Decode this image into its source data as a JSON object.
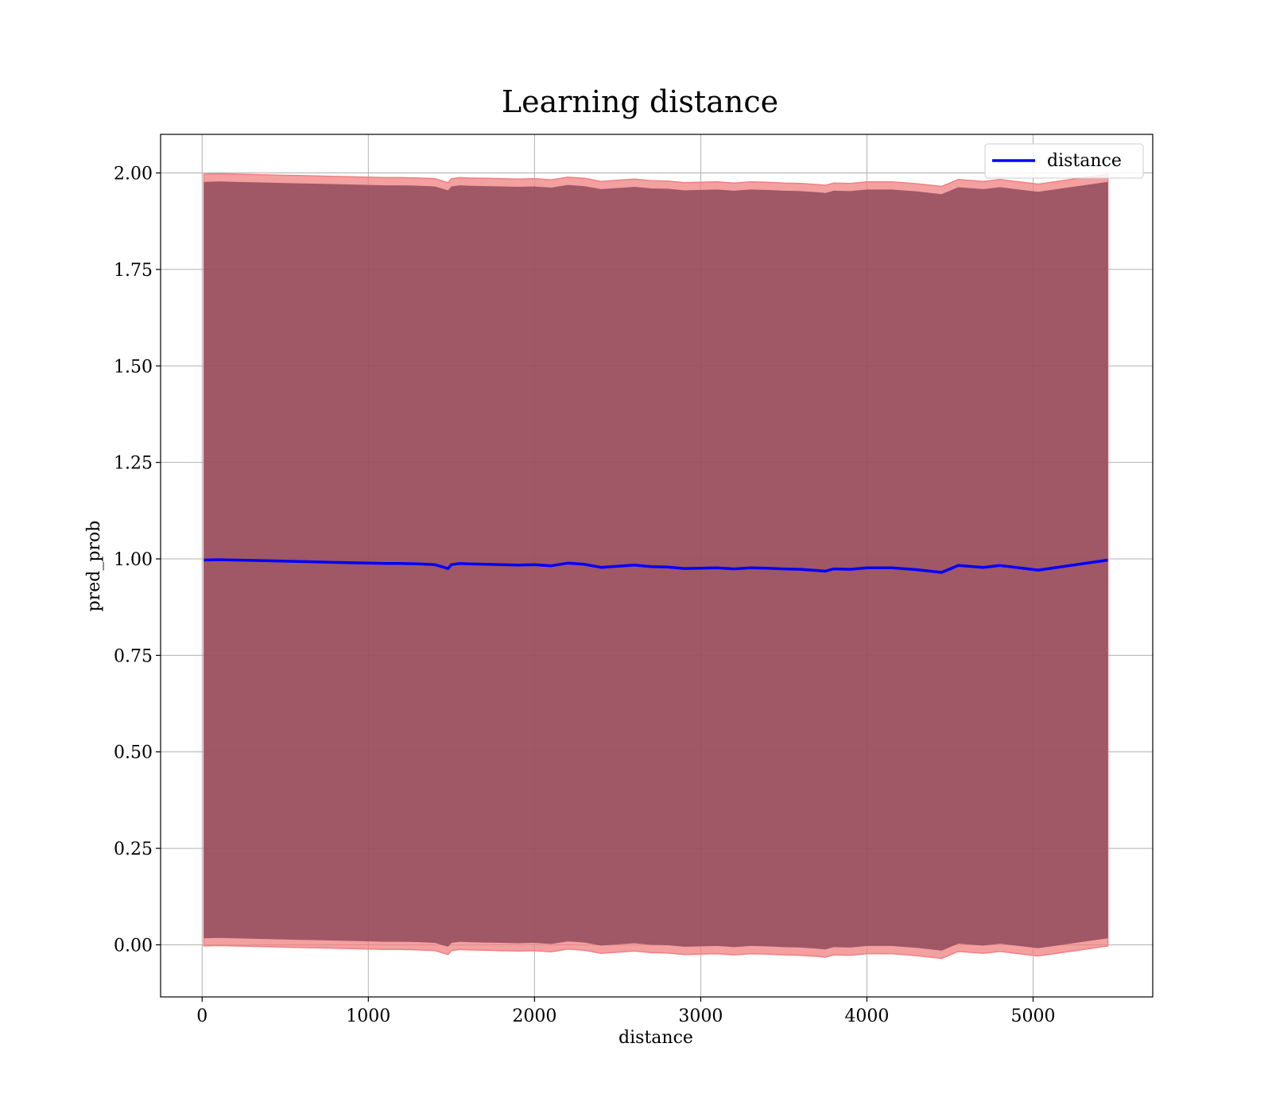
{
  "chart_data": {
    "type": "line",
    "title": "Learning distance",
    "xlabel": "distance",
    "ylabel": "pred_prob",
    "xlim": [
      -250,
      5720
    ],
    "ylim": [
      -0.135,
      2.1
    ],
    "xticks": [
      0,
      1000,
      2000,
      3000,
      4000,
      5000
    ],
    "yticks": [
      0.0,
      0.25,
      0.5,
      0.75,
      1.0,
      1.25,
      1.5,
      1.75,
      2.0
    ],
    "grid": true,
    "legend_position": "top-right",
    "series": [
      {
        "name": "distance",
        "color": "#0000ff",
        "x": [
          10,
          100,
          200,
          300,
          400,
          500,
          600,
          700,
          800,
          900,
          1000,
          1100,
          1200,
          1300,
          1400,
          1480,
          1500,
          1550,
          1600,
          1700,
          1800,
          1900,
          2000,
          2100,
          2200,
          2300,
          2400,
          2500,
          2600,
          2700,
          2800,
          2900,
          3000,
          3100,
          3200,
          3300,
          3400,
          3500,
          3600,
          3700,
          3750,
          3800,
          3900,
          4000,
          4150,
          4300,
          4450,
          4550,
          4700,
          4800,
          5030,
          5450
        ],
        "values": [
          0.997,
          0.998,
          0.997,
          0.996,
          0.995,
          0.994,
          0.993,
          0.992,
          0.991,
          0.99,
          0.989,
          0.988,
          0.988,
          0.987,
          0.985,
          0.975,
          0.985,
          0.988,
          0.987,
          0.986,
          0.985,
          0.984,
          0.985,
          0.982,
          0.989,
          0.986,
          0.978,
          0.981,
          0.984,
          0.98,
          0.979,
          0.975,
          0.976,
          0.977,
          0.974,
          0.977,
          0.976,
          0.974,
          0.973,
          0.97,
          0.968,
          0.974,
          0.973,
          0.977,
          0.977,
          0.972,
          0.965,
          0.983,
          0.978,
          0.983,
          0.971,
          0.997
        ]
      }
    ],
    "band_outer": {
      "color": "#f08080",
      "offset": 1.0
    },
    "band_inner": {
      "color": "#8b4557",
      "offset": 0.98
    }
  }
}
